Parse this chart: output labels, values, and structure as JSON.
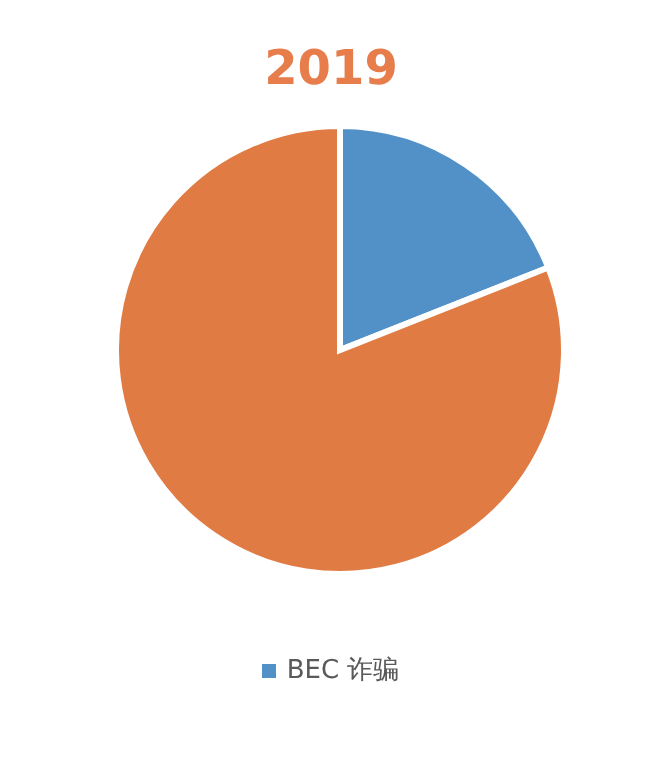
{
  "chart_data": {
    "type": "pie",
    "title": "2019",
    "categories": [
      "BEC 诈骗",
      null
    ],
    "values": [
      19,
      81
    ],
    "colors": [
      "#5191c8",
      "#e07b43"
    ],
    "legend": "bottom"
  }
}
